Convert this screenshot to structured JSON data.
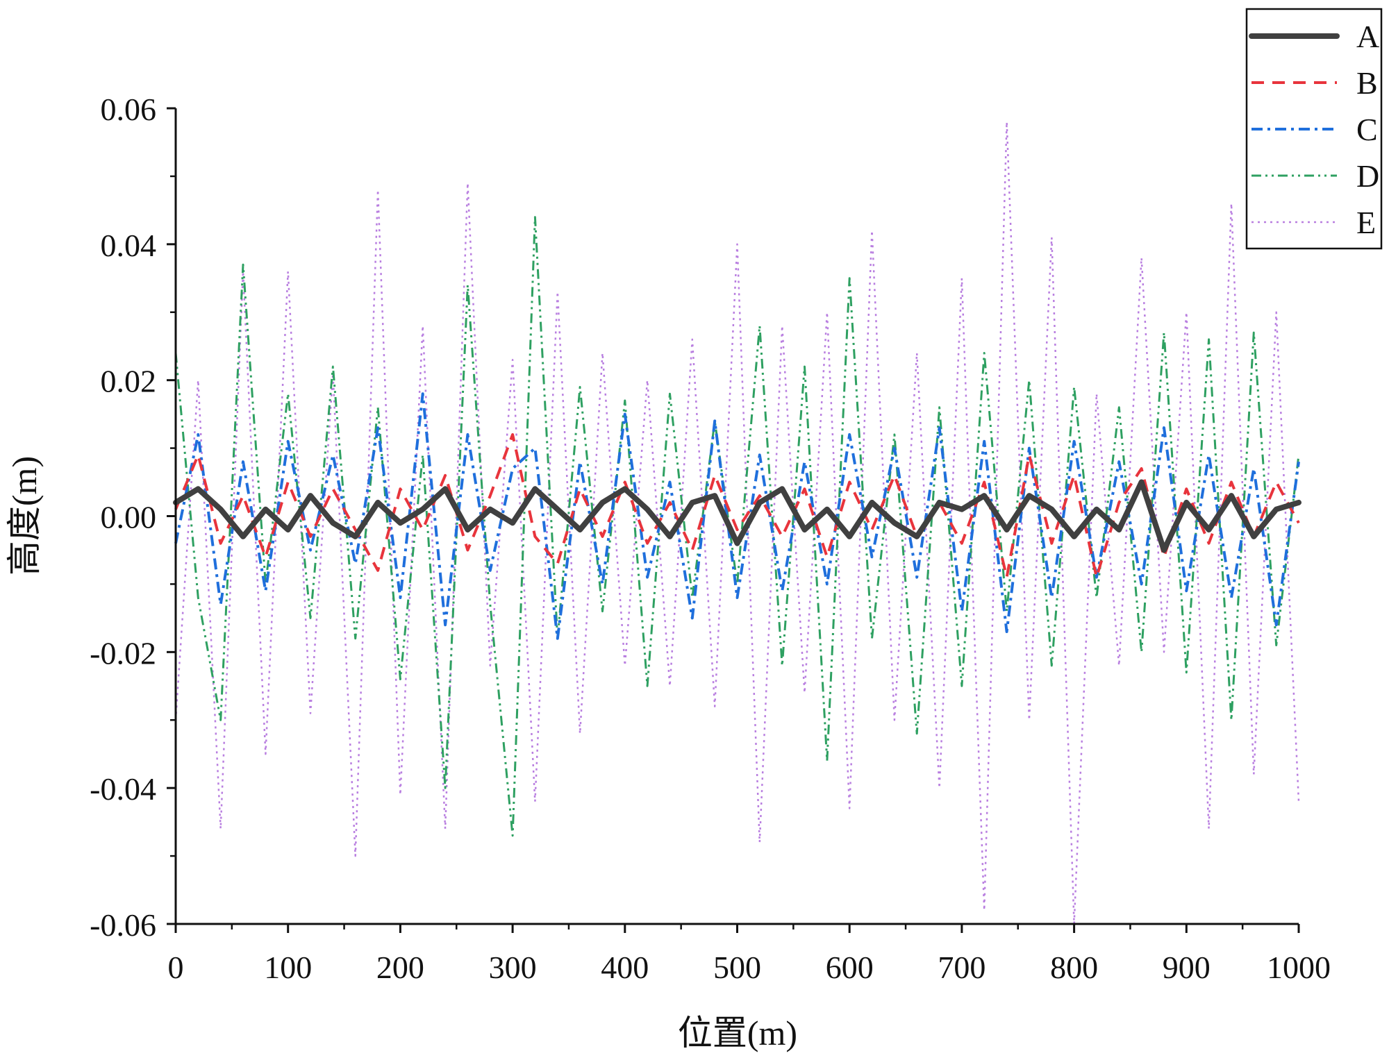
{
  "chart_data": {
    "type": "line",
    "title": "",
    "xlabel": "位置(m)",
    "ylabel": "高度(m)",
    "xlim": [
      0,
      1000
    ],
    "ylim": [
      -0.06,
      0.06
    ],
    "x_ticks": [
      "0",
      "100",
      "200",
      "300",
      "400",
      "500",
      "600",
      "700",
      "800",
      "900",
      "1000"
    ],
    "y_ticks": [
      "0.06",
      "0.04",
      "0.02",
      "0.00",
      "-0.02",
      "-0.04",
      "-0.06"
    ],
    "grid": false,
    "legend_position": "top-right",
    "x": [
      0,
      20,
      40,
      60,
      80,
      100,
      120,
      140,
      160,
      180,
      200,
      220,
      240,
      260,
      280,
      300,
      320,
      340,
      360,
      380,
      400,
      420,
      440,
      460,
      480,
      500,
      520,
      540,
      560,
      580,
      600,
      620,
      640,
      660,
      680,
      700,
      720,
      740,
      760,
      780,
      800,
      820,
      840,
      860,
      880,
      900,
      920,
      940,
      960,
      980,
      1000
    ],
    "series": [
      {
        "name": "A",
        "color": "#404040",
        "line_style": "solid",
        "values": [
          0.002,
          0.004,
          0.001,
          -0.003,
          0.001,
          -0.002,
          0.003,
          -0.001,
          -0.003,
          0.002,
          -0.001,
          0.001,
          0.004,
          -0.002,
          0.001,
          -0.001,
          0.004,
          0.001,
          -0.002,
          0.002,
          0.004,
          0.001,
          -0.003,
          0.002,
          0.003,
          -0.004,
          0.002,
          0.004,
          -0.002,
          0.001,
          -0.003,
          0.002,
          -0.001,
          -0.003,
          0.002,
          0.001,
          0.003,
          -0.002,
          0.003,
          0.001,
          -0.003,
          0.001,
          -0.002,
          0.005,
          -0.005,
          0.002,
          -0.002,
          0.003,
          -0.003,
          0.001,
          0.002
        ]
      },
      {
        "name": "B",
        "color": "#e8343c",
        "line_style": "dashed",
        "values": [
          0.001,
          0.009,
          -0.004,
          0.003,
          -0.006,
          0.005,
          -0.003,
          0.004,
          -0.002,
          -0.008,
          0.004,
          -0.002,
          0.006,
          -0.005,
          0.003,
          0.012,
          -0.003,
          -0.007,
          0.004,
          -0.003,
          0.005,
          -0.004,
          0.002,
          -0.005,
          0.006,
          -0.002,
          0.003,
          -0.003,
          0.004,
          -0.006,
          0.005,
          -0.002,
          0.006,
          -0.003,
          0.002,
          -0.004,
          0.005,
          -0.009,
          0.009,
          -0.004,
          0.006,
          -0.009,
          0.002,
          0.007,
          -0.006,
          0.004,
          -0.004,
          0.005,
          -0.003,
          0.005,
          -0.001
        ]
      },
      {
        "name": "C",
        "color": "#1f6fdc",
        "line_style": "dash-dot",
        "values": [
          -0.004,
          0.012,
          -0.013,
          0.008,
          -0.011,
          0.011,
          -0.005,
          0.009,
          -0.007,
          0.013,
          -0.012,
          0.018,
          -0.016,
          0.012,
          -0.008,
          0.007,
          0.01,
          -0.018,
          0.008,
          -0.01,
          0.015,
          -0.009,
          0.005,
          -0.015,
          0.014,
          -0.012,
          0.009,
          -0.011,
          0.008,
          -0.01,
          0.012,
          -0.006,
          0.01,
          -0.009,
          0.013,
          -0.014,
          0.011,
          -0.017,
          0.01,
          -0.012,
          0.011,
          -0.009,
          0.008,
          -0.01,
          0.013,
          -0.011,
          0.009,
          -0.012,
          0.007,
          -0.016,
          0.008
        ]
      },
      {
        "name": "D",
        "color": "#2ea061",
        "line_style": "dash-dot-dot",
        "values": [
          0.024,
          -0.012,
          -0.03,
          0.037,
          -0.01,
          0.018,
          -0.015,
          0.022,
          -0.018,
          0.016,
          -0.024,
          0.009,
          -0.04,
          0.034,
          -0.013,
          -0.047,
          0.044,
          -0.018,
          0.019,
          -0.014,
          0.017,
          -0.025,
          0.018,
          -0.012,
          0.014,
          -0.01,
          0.028,
          -0.022,
          0.022,
          -0.036,
          0.035,
          -0.018,
          0.012,
          -0.032,
          0.016,
          -0.025,
          0.024,
          -0.014,
          0.02,
          -0.022,
          0.019,
          -0.012,
          0.016,
          -0.02,
          0.027,
          -0.023,
          0.026,
          -0.03,
          0.027,
          -0.019,
          0.009
        ]
      },
      {
        "name": "E",
        "color": "#b97fe0",
        "line_style": "dotted",
        "values": [
          -0.03,
          0.02,
          -0.046,
          0.036,
          -0.035,
          0.036,
          -0.029,
          0.021,
          -0.05,
          0.048,
          -0.041,
          0.028,
          -0.046,
          0.049,
          -0.022,
          0.023,
          -0.042,
          0.033,
          -0.032,
          0.024,
          -0.022,
          0.02,
          -0.025,
          0.026,
          -0.028,
          0.04,
          -0.048,
          0.028,
          -0.026,
          0.03,
          -0.043,
          0.042,
          -0.03,
          0.024,
          -0.04,
          0.035,
          -0.058,
          0.058,
          -0.03,
          0.041,
          -0.06,
          0.018,
          -0.022,
          0.038,
          -0.02,
          0.03,
          -0.046,
          0.046,
          -0.038,
          0.03,
          -0.042
        ]
      }
    ],
    "legend": [
      "A",
      "B",
      "C",
      "D",
      "E"
    ]
  }
}
